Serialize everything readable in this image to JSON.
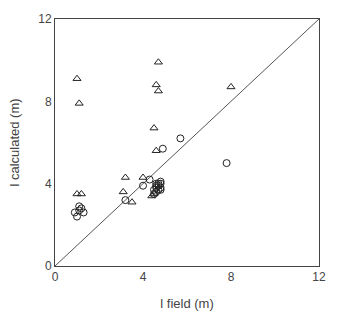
{
  "chart_data": {
    "type": "scatter",
    "xlabel": "l field (m)",
    "ylabel": "l calculated (m)",
    "xlim": [
      0,
      12
    ],
    "ylim": [
      0,
      12
    ],
    "xticks": [
      0,
      4,
      8,
      12
    ],
    "yticks": [
      0,
      4,
      8,
      12
    ],
    "grid": false,
    "series": [
      {
        "type": "line",
        "color": "#555555",
        "x": [
          0,
          12
        ],
        "values": [
          0,
          12
        ]
      },
      {
        "type": "scatter",
        "marker": "circle-open",
        "color": "#222222",
        "x": [
          0.9,
          1.0,
          1.1,
          1.1,
          1.2,
          1.3,
          3.2,
          4.0,
          4.3,
          4.5,
          4.5,
          4.6,
          4.6,
          4.6,
          4.6,
          4.7,
          4.7,
          4.7,
          4.8,
          4.8,
          4.8,
          4.8,
          4.9,
          5.7,
          7.8
        ],
        "values": [
          2.6,
          2.4,
          2.7,
          2.9,
          2.8,
          2.6,
          3.2,
          3.9,
          4.2,
          3.5,
          3.7,
          3.6,
          3.8,
          3.9,
          4.0,
          3.7,
          3.9,
          4.0,
          3.7,
          3.8,
          4.0,
          4.1,
          5.7,
          6.2,
          5.0
        ]
      },
      {
        "type": "scatter",
        "marker": "triangle-up-open",
        "color": "#222222",
        "x": [
          1.0,
          1.1,
          1.2,
          3.1,
          3.2,
          3.5,
          4.0,
          4.4,
          4.5,
          4.6,
          4.6,
          4.7,
          4.7,
          8.0,
          1.0,
          4.5
        ],
        "values": [
          9.1,
          7.9,
          3.5,
          3.6,
          4.3,
          3.1,
          4.3,
          3.4,
          3.5,
          5.6,
          8.8,
          9.9,
          8.5,
          8.7,
          3.5,
          6.7
        ]
      }
    ]
  }
}
